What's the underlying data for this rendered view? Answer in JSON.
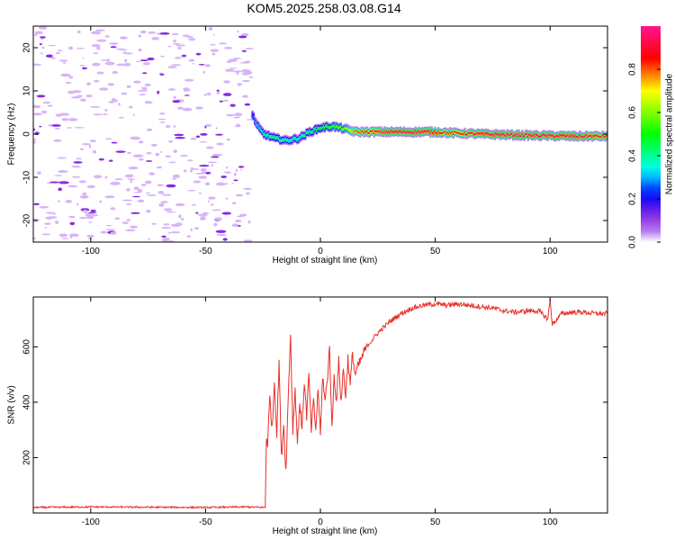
{
  "title": "KOM5.2025.258.03.08.G14",
  "chart_data": [
    {
      "type": "heatmap",
      "xlabel": "Height of straight line (km)",
      "ylabel": "Frequency (Hz)",
      "xlim": [
        -125,
        125
      ],
      "ylim": [
        -25,
        25
      ],
      "xticks": [
        -100,
        -50,
        0,
        50,
        100
      ],
      "yticks": [
        -20,
        -10,
        0,
        10,
        20
      ],
      "colorbar": {
        "label": "Normalized spectral amplitude",
        "range": [
          0,
          1
        ],
        "ticks": [
          0.0,
          0.2,
          0.4,
          0.6,
          0.8
        ],
        "colors": [
          "#ffffff",
          "#d8b4f8",
          "#8a2be2",
          "#0000ff",
          "#00ffff",
          "#00ff00",
          "#ffff00",
          "#ff0000",
          "#ff1493"
        ]
      },
      "noise_region_x": [
        -125,
        -30
      ],
      "signal_trace": [
        {
          "x": -30,
          "freq": 4.5,
          "amp": 0.25
        },
        {
          "x": -28,
          "freq": 2.0,
          "amp": 0.35
        },
        {
          "x": -25,
          "freq": 0.0,
          "amp": 0.4
        },
        {
          "x": -20,
          "freq": -1.0,
          "amp": 0.45
        },
        {
          "x": -15,
          "freq": -1.5,
          "amp": 0.4
        },
        {
          "x": -10,
          "freq": -1.0,
          "amp": 0.4
        },
        {
          "x": -5,
          "freq": 0.5,
          "amp": 0.45
        },
        {
          "x": 0,
          "freq": 1.5,
          "amp": 0.5
        },
        {
          "x": 5,
          "freq": 1.8,
          "amp": 0.55
        },
        {
          "x": 10,
          "freq": 1.2,
          "amp": 0.6
        },
        {
          "x": 15,
          "freq": 0.5,
          "amp": 0.8
        },
        {
          "x": 30,
          "freq": 0.5,
          "amp": 0.95
        },
        {
          "x": 50,
          "freq": 0.5,
          "amp": 0.95
        },
        {
          "x": 55,
          "freq": 0.3,
          "amp": 0.85
        },
        {
          "x": 70,
          "freq": 0.0,
          "amp": 0.95
        },
        {
          "x": 90,
          "freq": -0.3,
          "amp": 0.95
        },
        {
          "x": 110,
          "freq": -0.5,
          "amp": 0.95
        },
        {
          "x": 125,
          "freq": -0.5,
          "amp": 0.9
        }
      ]
    },
    {
      "type": "line",
      "xlabel": "Height of straight line (km)",
      "ylabel": "SNR (v/v)",
      "xlim": [
        -125,
        125
      ],
      "ylim": [
        0,
        780
      ],
      "xticks": [
        -100,
        -50,
        0,
        50,
        100
      ],
      "yticks": [
        200,
        400,
        600
      ],
      "series": [
        {
          "color": "#e8302a",
          "x": [
            -125,
            -100,
            -75,
            -50,
            -32,
            -24,
            -23.5,
            -23,
            -22,
            -21,
            -20,
            -19,
            -18,
            -17,
            -16,
            -15,
            -14,
            -13,
            -12,
            -11,
            -10,
            -9,
            -8,
            -7,
            -6,
            -5,
            -4,
            -3,
            -2,
            -1,
            0,
            1,
            2,
            3,
            4,
            5,
            6,
            7,
            8,
            9,
            10,
            11,
            12,
            13,
            14,
            15,
            17,
            20,
            25,
            30,
            35,
            40,
            45,
            50,
            55,
            60,
            65,
            70,
            75,
            80,
            85,
            90,
            95,
            99,
            100,
            101,
            105,
            110,
            115,
            120,
            125
          ],
          "y": [
            20,
            22,
            21,
            20,
            22,
            20,
            280,
            250,
            420,
            300,
            480,
            280,
            550,
            200,
            320,
            150,
            420,
            650,
            300,
            450,
            250,
            400,
            300,
            480,
            350,
            500,
            300,
            400,
            300,
            450,
            280,
            500,
            400,
            480,
            600,
            300,
            500,
            400,
            550,
            400,
            520,
            420,
            560,
            460,
            580,
            500,
            540,
            600,
            650,
            690,
            720,
            740,
            750,
            755,
            750,
            755,
            750,
            745,
            740,
            730,
            725,
            730,
            730,
            700,
            770,
            680,
            720,
            725,
            725,
            720,
            720
          ]
        }
      ]
    }
  ]
}
